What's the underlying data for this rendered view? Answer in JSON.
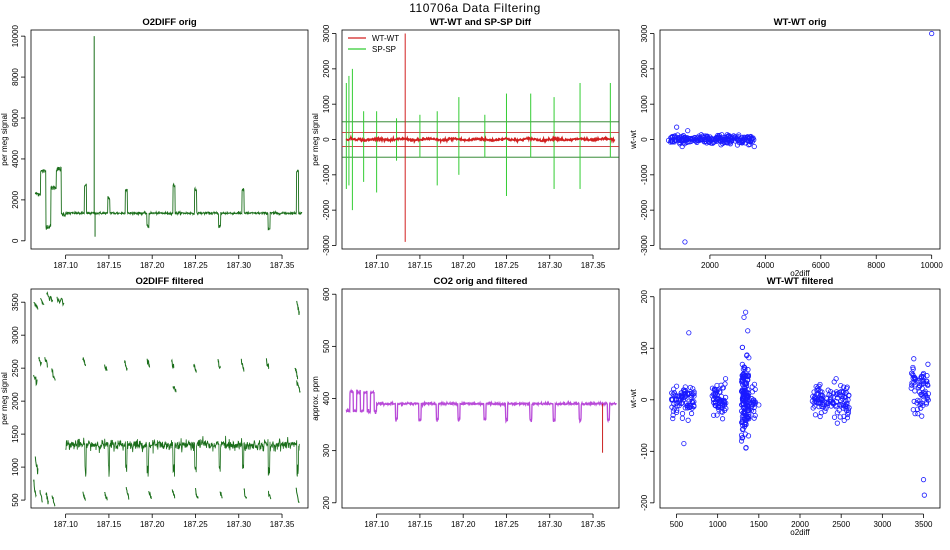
{
  "figure": {
    "title": "110706a   Data Filtering"
  },
  "chart_data": [
    {
      "id": "p1",
      "type": "line",
      "title": "O2DIFF orig",
      "xlabel": "",
      "ylabel": "per meg signal",
      "xlim": [
        187.06,
        187.38
      ],
      "ylim": [
        -400,
        10300
      ],
      "xticks": [
        187.1,
        187.15,
        187.2,
        187.25,
        187.3,
        187.35
      ],
      "xtick_labels": [
        "187.10",
        "187.15",
        "187.20",
        "187.25",
        "187.30",
        "187.35"
      ],
      "yticks": [
        0,
        2000,
        4000,
        6000,
        8000,
        10000
      ],
      "ytick_labels": [
        "0",
        "2000",
        "4000",
        "6000",
        "8000",
        "10000"
      ],
      "color": "#1a6e1a",
      "series": [
        {
          "name": "O2DIFF",
          "gen": "o2",
          "baseline": 1350,
          "base_until": 187.1,
          "levels": [
            2300,
            3400,
            700,
            2600,
            3500,
            1300
          ],
          "spikes": [
            [
              187.133,
              10000
            ],
            [
              187.134,
              200
            ]
          ],
          "cal_times": [
            187.123,
            187.15,
            187.17,
            187.195,
            187.225,
            187.25,
            187.278,
            187.305,
            187.335,
            187.368
          ],
          "cal_levels": [
            2700,
            2100,
            2500,
            700,
            2700,
            2500,
            700,
            2500,
            600,
            3400
          ]
        }
      ]
    },
    {
      "id": "p2",
      "type": "line",
      "title": "WT-WT and SP-SP Diff",
      "xlabel": "",
      "ylabel": "per meg signal",
      "xlim": [
        187.06,
        187.38
      ],
      "ylim": [
        -3100,
        3100
      ],
      "xticks": [
        187.1,
        187.15,
        187.2,
        187.25,
        187.3,
        187.35
      ],
      "xtick_labels": [
        "187.10",
        "187.15",
        "187.20",
        "187.25",
        "187.30",
        "187.35"
      ],
      "yticks": [
        -3000,
        -2000,
        -1000,
        0,
        1000,
        2000,
        3000
      ],
      "ytick_labels": [
        "-3000",
        "-2000",
        "-1000",
        "0",
        "1000",
        "2000",
        "3000"
      ],
      "hlines_green": [
        500,
        -500
      ],
      "hlines_red": [
        200,
        -200
      ],
      "legend": [
        {
          "name": "WT-WT",
          "color": "#d22020"
        },
        {
          "name": "SP-SP",
          "color": "#33cc33"
        }
      ],
      "wt_spikes": [
        [
          187.133,
          3000
        ],
        [
          187.133,
          -2900
        ]
      ],
      "sp_spikes": [
        [
          187.065,
          1600,
          -1400
        ],
        [
          187.068,
          1800,
          -1300
        ],
        [
          187.072,
          2000,
          -2000
        ],
        [
          187.085,
          800,
          -1200
        ],
        [
          187.1,
          800,
          -1500
        ],
        [
          187.123,
          600,
          -600
        ],
        [
          187.15,
          700,
          -500
        ],
        [
          187.17,
          800,
          -1300
        ],
        [
          187.195,
          1200,
          -1000
        ],
        [
          187.225,
          700,
          -500
        ],
        [
          187.25,
          1300,
          -1600
        ],
        [
          187.278,
          1300,
          -500
        ],
        [
          187.305,
          1200,
          -1400
        ],
        [
          187.335,
          1600,
          -1400
        ],
        [
          187.37,
          1600,
          -500
        ]
      ]
    },
    {
      "id": "p3",
      "type": "scatter",
      "title": "WT-WT orig",
      "xlabel": "o2diff",
      "ylabel": "wt-wt",
      "xlim": [
        200,
        10300
      ],
      "ylim": [
        -3100,
        3100
      ],
      "xticks": [
        2000,
        4000,
        6000,
        8000,
        10000
      ],
      "xtick_labels": [
        "2000",
        "4000",
        "6000",
        "8000",
        "10000"
      ],
      "yticks": [
        -3000,
        -2000,
        -1000,
        0,
        1000,
        2000,
        3000
      ],
      "ytick_labels": [
        "-3000",
        "-2000",
        "-1000",
        "0",
        "1000",
        "2000",
        "3000"
      ],
      "color": "#1a1aff",
      "clusters": [
        [
          500,
          3600,
          0,
          60,
          220
        ]
      ],
      "outliers": [
        [
          10000,
          3000
        ],
        [
          1100,
          -2900
        ],
        [
          800,
          350
        ],
        [
          1000,
          -200
        ],
        [
          1200,
          250
        ],
        [
          2400,
          -150
        ],
        [
          3400,
          -150
        ],
        [
          3600,
          -200
        ]
      ]
    },
    {
      "id": "p4",
      "type": "line",
      "title": "O2DIFF filtered",
      "xlabel": "",
      "ylabel": "per meg signal",
      "xlim": [
        187.06,
        187.38
      ],
      "ylim": [
        380,
        3700
      ],
      "xticks": [
        187.1,
        187.15,
        187.2,
        187.25,
        187.3,
        187.35
      ],
      "xtick_labels": [
        "187.10",
        "187.15",
        "187.20",
        "187.25",
        "187.30",
        "187.35"
      ],
      "yticks": [
        500,
        1000,
        1500,
        2000,
        2500,
        3000,
        3500
      ],
      "ytick_labels": [
        "500",
        "1000",
        "1500",
        "2000",
        "2500",
        "3000",
        "3500"
      ],
      "color": "#1a6e1a",
      "main_trace": {
        "from": 187.1,
        "to": 187.37,
        "level": 1340,
        "noise": 40,
        "dips": [
          187.123,
          187.15,
          187.17,
          187.195,
          187.225,
          187.25,
          187.278,
          187.305,
          187.335,
          187.368
        ],
        "dip_to": 850
      },
      "segments": [
        [
          187.063,
          187.068,
          3500,
          3400
        ],
        [
          187.071,
          187.075,
          3540,
          3450
        ],
        [
          187.078,
          187.085,
          3600,
          3550
        ],
        [
          187.09,
          187.098,
          3560,
          3480
        ],
        [
          187.063,
          187.067,
          2400,
          2280
        ],
        [
          187.069,
          187.072,
          2650,
          2560
        ],
        [
          187.076,
          187.079,
          2640,
          2540
        ],
        [
          187.084,
          187.088,
          2500,
          2300
        ],
        [
          187.063,
          187.066,
          750,
          550
        ],
        [
          187.07,
          187.073,
          650,
          480
        ],
        [
          187.077,
          187.08,
          620,
          450
        ],
        [
          187.084,
          187.088,
          560,
          420
        ],
        [
          187.065,
          187.068,
          1120,
          950
        ],
        [
          187.12,
          187.123,
          2650,
          2550
        ],
        [
          187.145,
          187.148,
          2550,
          2450
        ],
        [
          187.168,
          187.171,
          2600,
          2480
        ],
        [
          187.194,
          187.197,
          2650,
          2500
        ],
        [
          187.222,
          187.225,
          2600,
          2500
        ],
        [
          187.224,
          187.228,
          2250,
          2150
        ],
        [
          187.248,
          187.251,
          2550,
          2450
        ],
        [
          187.276,
          187.279,
          2600,
          2480
        ],
        [
          187.303,
          187.306,
          2600,
          2480
        ],
        [
          187.332,
          187.335,
          2600,
          2500
        ],
        [
          187.365,
          187.368,
          2500,
          2350
        ],
        [
          187.367,
          187.371,
          2300,
          2150
        ],
        [
          187.367,
          187.37,
          3500,
          3330
        ],
        [
          187.12,
          187.123,
          620,
          500
        ],
        [
          187.145,
          187.148,
          600,
          500
        ],
        [
          187.17,
          187.173,
          660,
          540
        ],
        [
          187.196,
          187.199,
          640,
          520
        ],
        [
          187.223,
          187.226,
          660,
          540
        ],
        [
          187.25,
          187.253,
          640,
          520
        ],
        [
          187.278,
          187.281,
          640,
          520
        ],
        [
          187.306,
          187.309,
          650,
          520
        ],
        [
          187.334,
          187.337,
          640,
          520
        ],
        [
          187.366,
          187.37,
          650,
          420
        ]
      ]
    },
    {
      "id": "p5",
      "type": "line",
      "title": "CO2 orig and filtered",
      "xlabel": "",
      "ylabel": "approx. ppm",
      "xlim": [
        187.06,
        187.38
      ],
      "ylim": [
        190,
        610
      ],
      "xticks": [
        187.1,
        187.15,
        187.2,
        187.25,
        187.3,
        187.35
      ],
      "xtick_labels": [
        "187.10",
        "187.15",
        "187.20",
        "187.25",
        "187.30",
        "187.35"
      ],
      "yticks": [
        200,
        300,
        400,
        500,
        600
      ],
      "ytick_labels": [
        "200",
        "300",
        "400",
        "500",
        "600"
      ],
      "colors": {
        "orig": "#cc2222",
        "filtered": "#b84ad8"
      },
      "baseline": 390,
      "dips": [
        187.123,
        187.15,
        187.17,
        187.195,
        187.225,
        187.25,
        187.278,
        187.305,
        187.335,
        187.368
      ],
      "dip_to": 355,
      "red_spike": [
        187.361,
        296
      ]
    },
    {
      "id": "p6",
      "type": "scatter",
      "title": "WT-WT filtered",
      "xlabel": "o2diff",
      "ylabel": "wt-wt",
      "xlim": [
        300,
        3700
      ],
      "ylim": [
        -210,
        215
      ],
      "xticks": [
        500,
        1000,
        1500,
        2000,
        2500,
        3000,
        3500
      ],
      "xtick_labels": [
        "500",
        "1000",
        "1500",
        "2000",
        "2500",
        "3000",
        "3500"
      ],
      "yticks": [
        -200,
        -100,
        0,
        100,
        200
      ],
      "ytick_labels": [
        "-200",
        "-100",
        "0",
        "100",
        "200"
      ],
      "color": "#1a1aff",
      "clusters": [
        [
          440,
          720,
          0,
          15,
          90
        ],
        [
          930,
          1100,
          0,
          15,
          70
        ],
        [
          1290,
          1380,
          0,
          35,
          160
        ],
        [
          1400,
          1460,
          0,
          12,
          20
        ],
        [
          2150,
          2270,
          0,
          15,
          40
        ],
        [
          2260,
          2380,
          0,
          12,
          25
        ],
        [
          2400,
          2600,
          0,
          20,
          60
        ],
        [
          3350,
          3560,
          20,
          25,
          70
        ]
      ],
      "outliers": [
        [
          650,
          130
        ],
        [
          590,
          -85
        ],
        [
          1340,
          170
        ],
        [
          1320,
          160
        ],
        [
          1290,
          -80
        ],
        [
          3500,
          -155
        ],
        [
          3510,
          -185
        ],
        [
          1500,
          -10
        ],
        [
          1420,
          25
        ]
      ]
    }
  ]
}
